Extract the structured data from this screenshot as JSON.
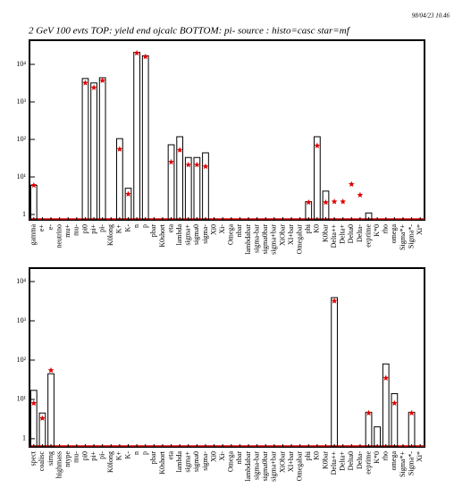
{
  "header": {
    "date": "98/04/23  10.46",
    "title": "2 GeV 100 evts TOP: yield end ojcalc BOTTOM: pi- source : histo=casc star=mf"
  },
  "chart_data": [
    {
      "type": "bar",
      "log_y": true,
      "categories": [
        "gamma",
        "e+",
        "e-",
        "neutrino",
        "mu+",
        "mu-",
        "pi0",
        "pi+",
        "pi-",
        "K0long",
        "K+",
        "K-",
        "n",
        "p",
        "pbar",
        "K0short",
        "eta",
        "lambda",
        "sigma+",
        "sigma0",
        "sigma-",
        "Xi0",
        "Xi-",
        "Omega",
        "nbar",
        "lambdabar",
        "sigma-bar",
        "sigma0bar",
        "sigma+bar",
        "XiObar",
        "XI+bar",
        "Omegabar",
        "phi",
        "K0",
        "K0bar",
        "Delta++",
        "Delta+",
        "Delta0",
        "Delta-",
        "eeprime",
        "K*0",
        "rho",
        "omega",
        "Sigma*+",
        "Sigma*-",
        "Xi*"
      ],
      "series": [
        {
          "color": "#000000",
          "values": [
            6,
            null,
            null,
            null,
            null,
            null,
            4200,
            3200,
            4400,
            null,
            105,
            5,
            21000,
            17000,
            null,
            null,
            72,
            118,
            33,
            33,
            44,
            null,
            null,
            null,
            null,
            null,
            null,
            null,
            null,
            null,
            null,
            null,
            2.2,
            118,
            4.2,
            null,
            null,
            null,
            null,
            1.1,
            null,
            null,
            null,
            null,
            null,
            null
          ]
        },
        {
          "color": "#e00000",
          "marker": "star",
          "values": [
            6,
            null,
            null,
            null,
            null,
            null,
            3200,
            2400,
            3700,
            null,
            55,
            3.5,
            20000,
            16000,
            null,
            null,
            25,
            52,
            21,
            21,
            19,
            null,
            null,
            null,
            null,
            null,
            null,
            null,
            null,
            null,
            null,
            null,
            2.1,
            68,
            2.1,
            2.2,
            2.2,
            6.4,
            3.3,
            null,
            null,
            null,
            null,
            null,
            null,
            null
          ]
        }
      ],
      "ylim": [
        0.72,
        44000
      ],
      "yticks": [
        1,
        {
          "value": 10,
          "label": "10¹"
        },
        {
          "value": 100,
          "label": "10²"
        },
        {
          "value": 1000,
          "label": "10³"
        },
        {
          "value": 10000,
          "label": "10⁴"
        }
      ]
    },
    {
      "type": "bar",
      "log_y": true,
      "categories": [
        "spect",
        "coalisc",
        "sirng",
        "highmass",
        "ntype",
        "mu-",
        "pi0",
        "pi+",
        "pi-",
        "K0long",
        "K+",
        "K-",
        "n",
        "p",
        "pbar",
        "K0short",
        "eta",
        "lambda",
        "sigma+",
        "sigma0",
        "sigma-",
        "Xi0",
        "Xi-",
        "Omega",
        "nbar",
        "lambdabar",
        "sigma-bar",
        "sigma0bar",
        "sigma+bar",
        "XiObar",
        "XI+bar",
        "Omegabar",
        "phi",
        "K0",
        "K0bar",
        "Delta++",
        "Delta+",
        "Delta0",
        "Delta-",
        "eeprime",
        "K*0",
        "rho",
        "omega",
        "Sigma*+",
        "Sigma*-",
        "Xi*"
      ],
      "series": [
        {
          "color": "#000000",
          "values": [
            17,
            4.5,
            45,
            null,
            null,
            null,
            null,
            null,
            null,
            null,
            null,
            null,
            null,
            null,
            null,
            null,
            null,
            null,
            null,
            null,
            null,
            null,
            null,
            null,
            null,
            null,
            null,
            null,
            null,
            null,
            null,
            null,
            null,
            null,
            null,
            3900,
            null,
            null,
            null,
            4.7,
            2,
            80,
            14,
            null,
            4.7,
            null
          ]
        },
        {
          "color": "#e00000",
          "marker": "star",
          "values": [
            8,
            3.3,
            55,
            null,
            null,
            null,
            null,
            null,
            null,
            null,
            null,
            null,
            null,
            null,
            null,
            null,
            null,
            null,
            null,
            null,
            null,
            null,
            null,
            null,
            null,
            null,
            null,
            null,
            null,
            null,
            null,
            null,
            null,
            null,
            null,
            3200,
            null,
            null,
            null,
            4.5,
            null,
            35,
            8,
            null,
            4.5,
            null
          ]
        }
      ],
      "ylim": [
        0.62,
        22000
      ],
      "yticks": [
        1,
        {
          "value": 10,
          "label": "10¹"
        },
        {
          "value": 100,
          "label": "10²"
        },
        {
          "value": 1000,
          "label": "10³"
        },
        {
          "value": 10000,
          "label": "10⁴"
        }
      ]
    }
  ]
}
